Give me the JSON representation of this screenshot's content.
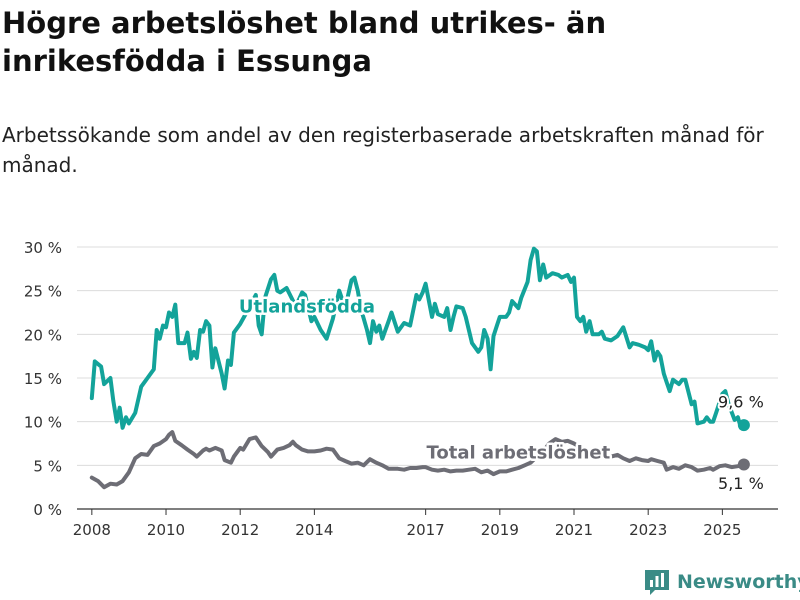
{
  "title": "Högre arbetslöshet bland utrikes- än inrikesfödda i Essunga",
  "subtitle": "Arbetssökande som andel av den registerbaserade arbetskraften månad för månad.",
  "brand": "Newsworthy",
  "chart_data": {
    "type": "line",
    "x_unit": "year",
    "xlim": [
      2007.6,
      2026.5
    ],
    "ylim": [
      0,
      30
    ],
    "y_ticks": [
      0,
      5,
      10,
      15,
      20,
      25,
      30
    ],
    "y_tick_labels": [
      "0 %",
      "5 %",
      "10 %",
      "15 %",
      "20 %",
      "25 %",
      "30 %"
    ],
    "x_ticks": [
      2008,
      2010,
      2012,
      2014,
      2017,
      2019,
      2021,
      2023,
      2025
    ],
    "x_tick_labels": [
      "2008",
      "2010",
      "2012",
      "2014",
      "2017",
      "2019",
      "2021",
      "2023",
      "2025"
    ],
    "grid": true,
    "series": [
      {
        "name": "Utlandsfödda",
        "color": "#13a39a",
        "end_label": "9,6 %",
        "points": [
          [
            2008.0,
            12.7
          ],
          [
            2008.08,
            16.9
          ],
          [
            2008.25,
            16.3
          ],
          [
            2008.33,
            14.3
          ],
          [
            2008.5,
            15.0
          ],
          [
            2008.58,
            12.4
          ],
          [
            2008.67,
            10.0
          ],
          [
            2008.75,
            11.6
          ],
          [
            2008.83,
            9.3
          ],
          [
            2008.92,
            10.5
          ],
          [
            2009.0,
            9.8
          ],
          [
            2009.17,
            11.0
          ],
          [
            2009.33,
            14.0
          ],
          [
            2009.5,
            15.0
          ],
          [
            2009.67,
            16.0
          ],
          [
            2009.75,
            20.5
          ],
          [
            2009.83,
            19.5
          ],
          [
            2009.92,
            21.0
          ],
          [
            2010.0,
            20.8
          ],
          [
            2010.08,
            22.5
          ],
          [
            2010.17,
            22.0
          ],
          [
            2010.25,
            23.4
          ],
          [
            2010.33,
            19.0
          ],
          [
            2010.5,
            19.0
          ],
          [
            2010.58,
            20.2
          ],
          [
            2010.67,
            17.2
          ],
          [
            2010.75,
            18.0
          ],
          [
            2010.83,
            17.3
          ],
          [
            2010.92,
            20.5
          ],
          [
            2011.0,
            20.3
          ],
          [
            2011.08,
            21.5
          ],
          [
            2011.17,
            21.0
          ],
          [
            2011.25,
            16.2
          ],
          [
            2011.33,
            18.4
          ],
          [
            2011.5,
            15.5
          ],
          [
            2011.58,
            13.8
          ],
          [
            2011.67,
            17.0
          ],
          [
            2011.75,
            16.5
          ],
          [
            2011.83,
            20.2
          ],
          [
            2012.0,
            21.2
          ],
          [
            2012.17,
            22.5
          ],
          [
            2012.42,
            24.5
          ],
          [
            2012.5,
            21.0
          ],
          [
            2012.58,
            20.0
          ],
          [
            2012.67,
            24.2
          ],
          [
            2012.83,
            26.3
          ],
          [
            2012.92,
            26.8
          ],
          [
            2013.0,
            25.0
          ],
          [
            2013.08,
            24.8
          ],
          [
            2013.25,
            25.3
          ],
          [
            2013.5,
            23.2
          ],
          [
            2013.67,
            24.8
          ],
          [
            2013.75,
            24.5
          ],
          [
            2013.92,
            21.5
          ],
          [
            2014.0,
            22.0
          ],
          [
            2014.17,
            20.5
          ],
          [
            2014.33,
            19.5
          ],
          [
            2014.5,
            21.8
          ],
          [
            2014.67,
            25.0
          ],
          [
            2014.83,
            23.0
          ],
          [
            2015.0,
            26.2
          ],
          [
            2015.08,
            26.5
          ],
          [
            2015.17,
            25.0
          ],
          [
            2015.25,
            23.0
          ],
          [
            2015.42,
            20.5
          ],
          [
            2015.5,
            19.0
          ],
          [
            2015.58,
            21.5
          ],
          [
            2015.67,
            20.3
          ],
          [
            2015.75,
            21.0
          ],
          [
            2015.83,
            19.5
          ],
          [
            2016.0,
            21.5
          ],
          [
            2016.08,
            22.5
          ],
          [
            2016.25,
            20.3
          ],
          [
            2016.42,
            21.3
          ],
          [
            2016.58,
            21.0
          ],
          [
            2016.75,
            24.5
          ],
          [
            2016.83,
            24.0
          ],
          [
            2016.92,
            24.8
          ],
          [
            2017.0,
            25.8
          ],
          [
            2017.08,
            24.0
          ],
          [
            2017.17,
            22.0
          ],
          [
            2017.25,
            23.5
          ],
          [
            2017.33,
            22.3
          ],
          [
            2017.5,
            22.0
          ],
          [
            2017.58,
            23.0
          ],
          [
            2017.67,
            20.5
          ],
          [
            2017.75,
            22.0
          ],
          [
            2017.83,
            23.2
          ],
          [
            2018.0,
            23.0
          ],
          [
            2018.08,
            22.0
          ],
          [
            2018.25,
            19.0
          ],
          [
            2018.42,
            18.0
          ],
          [
            2018.5,
            18.5
          ],
          [
            2018.58,
            20.5
          ],
          [
            2018.67,
            19.5
          ],
          [
            2018.75,
            16.0
          ],
          [
            2018.83,
            19.8
          ],
          [
            2018.92,
            21.0
          ],
          [
            2019.0,
            22.0
          ],
          [
            2019.17,
            22.0
          ],
          [
            2019.25,
            22.5
          ],
          [
            2019.33,
            23.8
          ],
          [
            2019.5,
            23.0
          ],
          [
            2019.58,
            24.2
          ],
          [
            2019.75,
            26.0
          ],
          [
            2019.83,
            28.5
          ],
          [
            2019.92,
            29.8
          ],
          [
            2020.0,
            29.5
          ],
          [
            2020.08,
            26.2
          ],
          [
            2020.17,
            28.0
          ],
          [
            2020.25,
            26.5
          ],
          [
            2020.42,
            27.0
          ],
          [
            2020.58,
            26.8
          ],
          [
            2020.67,
            26.5
          ],
          [
            2020.83,
            26.8
          ],
          [
            2020.92,
            26.0
          ],
          [
            2021.0,
            26.5
          ],
          [
            2021.08,
            22.0
          ],
          [
            2021.17,
            21.5
          ],
          [
            2021.25,
            22.0
          ],
          [
            2021.33,
            20.3
          ],
          [
            2021.42,
            21.5
          ],
          [
            2021.5,
            20.0
          ],
          [
            2021.67,
            20.0
          ],
          [
            2021.75,
            20.3
          ],
          [
            2021.83,
            19.5
          ],
          [
            2022.0,
            19.3
          ],
          [
            2022.17,
            19.8
          ],
          [
            2022.33,
            20.8
          ],
          [
            2022.5,
            18.5
          ],
          [
            2022.58,
            19.0
          ],
          [
            2022.75,
            18.8
          ],
          [
            2022.92,
            18.5
          ],
          [
            2023.0,
            18.2
          ],
          [
            2023.08,
            19.2
          ],
          [
            2023.17,
            17.0
          ],
          [
            2023.25,
            18.0
          ],
          [
            2023.33,
            17.5
          ],
          [
            2023.42,
            15.5
          ],
          [
            2023.5,
            14.5
          ],
          [
            2023.58,
            13.5
          ],
          [
            2023.67,
            14.8
          ],
          [
            2023.83,
            14.3
          ],
          [
            2023.92,
            14.8
          ],
          [
            2024.0,
            14.8
          ],
          [
            2024.17,
            12.0
          ],
          [
            2024.25,
            12.3
          ],
          [
            2024.33,
            9.8
          ],
          [
            2024.5,
            10.0
          ],
          [
            2024.58,
            10.5
          ],
          [
            2024.67,
            10.0
          ],
          [
            2024.75,
            10.0
          ],
          [
            2024.83,
            11.0
          ],
          [
            2025.0,
            13.2
          ],
          [
            2025.08,
            13.5
          ],
          [
            2025.17,
            12.0
          ],
          [
            2025.33,
            10.2
          ],
          [
            2025.42,
            10.5
          ],
          [
            2025.5,
            9.3
          ],
          [
            2025.58,
            9.6
          ]
        ]
      },
      {
        "name": "Total arbetslöshet",
        "color": "#6d6d75",
        "end_label": "5,1 %",
        "points": [
          [
            2008.0,
            3.6
          ],
          [
            2008.17,
            3.2
          ],
          [
            2008.33,
            2.5
          ],
          [
            2008.5,
            2.9
          ],
          [
            2008.67,
            2.8
          ],
          [
            2008.83,
            3.2
          ],
          [
            2009.0,
            4.2
          ],
          [
            2009.17,
            5.8
          ],
          [
            2009.33,
            6.3
          ],
          [
            2009.5,
            6.2
          ],
          [
            2009.67,
            7.2
          ],
          [
            2009.83,
            7.5
          ],
          [
            2010.0,
            8.0
          ],
          [
            2010.08,
            8.5
          ],
          [
            2010.17,
            8.8
          ],
          [
            2010.25,
            7.8
          ],
          [
            2010.42,
            7.3
          ],
          [
            2010.58,
            6.8
          ],
          [
            2010.75,
            6.3
          ],
          [
            2010.83,
            6.0
          ],
          [
            2011.0,
            6.7
          ],
          [
            2011.08,
            6.9
          ],
          [
            2011.17,
            6.7
          ],
          [
            2011.33,
            7.0
          ],
          [
            2011.5,
            6.7
          ],
          [
            2011.58,
            5.6
          ],
          [
            2011.75,
            5.3
          ],
          [
            2011.83,
            6.0
          ],
          [
            2012.0,
            7.0
          ],
          [
            2012.08,
            6.8
          ],
          [
            2012.25,
            8.0
          ],
          [
            2012.42,
            8.2
          ],
          [
            2012.58,
            7.2
          ],
          [
            2012.75,
            6.5
          ],
          [
            2012.83,
            6.0
          ],
          [
            2013.0,
            6.8
          ],
          [
            2013.17,
            7.0
          ],
          [
            2013.33,
            7.3
          ],
          [
            2013.42,
            7.7
          ],
          [
            2013.5,
            7.3
          ],
          [
            2013.67,
            6.8
          ],
          [
            2013.83,
            6.6
          ],
          [
            2014.0,
            6.6
          ],
          [
            2014.17,
            6.7
          ],
          [
            2014.33,
            6.9
          ],
          [
            2014.5,
            6.8
          ],
          [
            2014.67,
            5.8
          ],
          [
            2014.83,
            5.5
          ],
          [
            2015.0,
            5.2
          ],
          [
            2015.17,
            5.3
          ],
          [
            2015.33,
            5.0
          ],
          [
            2015.5,
            5.7
          ],
          [
            2015.67,
            5.3
          ],
          [
            2015.83,
            5.0
          ],
          [
            2016.0,
            4.6
          ],
          [
            2016.25,
            4.6
          ],
          [
            2016.42,
            4.5
          ],
          [
            2016.58,
            4.7
          ],
          [
            2016.75,
            4.7
          ],
          [
            2016.92,
            4.8
          ],
          [
            2017.0,
            4.8
          ],
          [
            2017.17,
            4.5
          ],
          [
            2017.33,
            4.4
          ],
          [
            2017.5,
            4.5
          ],
          [
            2017.67,
            4.3
          ],
          [
            2017.83,
            4.4
          ],
          [
            2018.0,
            4.4
          ],
          [
            2018.17,
            4.5
          ],
          [
            2018.33,
            4.6
          ],
          [
            2018.5,
            4.2
          ],
          [
            2018.67,
            4.4
          ],
          [
            2018.83,
            4.0
          ],
          [
            2019.0,
            4.3
          ],
          [
            2019.17,
            4.3
          ],
          [
            2019.33,
            4.5
          ],
          [
            2019.5,
            4.7
          ],
          [
            2019.67,
            5.0
          ],
          [
            2019.83,
            5.3
          ],
          [
            2020.0,
            6.0
          ],
          [
            2020.17,
            6.6
          ],
          [
            2020.33,
            7.5
          ],
          [
            2020.5,
            8.0
          ],
          [
            2020.67,
            7.7
          ],
          [
            2020.83,
            7.8
          ],
          [
            2021.0,
            7.5
          ],
          [
            2021.17,
            7.0
          ],
          [
            2021.33,
            6.8
          ],
          [
            2021.5,
            6.5
          ],
          [
            2021.67,
            6.3
          ],
          [
            2021.83,
            6.0
          ],
          [
            2022.0,
            6.0
          ],
          [
            2022.17,
            6.2
          ],
          [
            2022.33,
            5.8
          ],
          [
            2022.5,
            5.5
          ],
          [
            2022.67,
            5.8
          ],
          [
            2022.83,
            5.6
          ],
          [
            2023.0,
            5.5
          ],
          [
            2023.08,
            5.7
          ],
          [
            2023.25,
            5.5
          ],
          [
            2023.42,
            5.3
          ],
          [
            2023.5,
            4.5
          ],
          [
            2023.67,
            4.8
          ],
          [
            2023.83,
            4.6
          ],
          [
            2024.0,
            5.0
          ],
          [
            2024.17,
            4.8
          ],
          [
            2024.33,
            4.4
          ],
          [
            2024.5,
            4.5
          ],
          [
            2024.67,
            4.7
          ],
          [
            2024.75,
            4.5
          ],
          [
            2024.92,
            4.9
          ],
          [
            2025.08,
            5.0
          ],
          [
            2025.25,
            4.8
          ],
          [
            2025.42,
            4.9
          ],
          [
            2025.58,
            5.1
          ]
        ]
      }
    ]
  }
}
